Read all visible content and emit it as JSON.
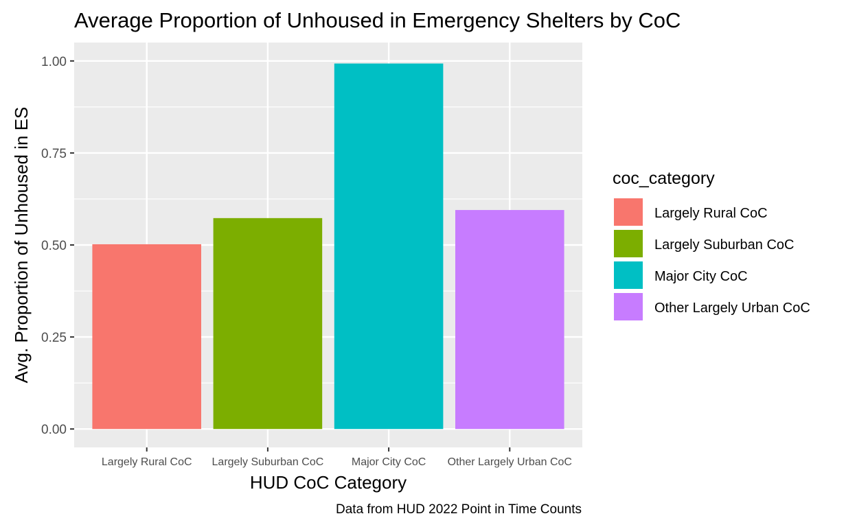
{
  "chart_data": {
    "type": "bar",
    "title": "Average Proportion of Unhoused in Emergency Shelters by CoC",
    "xlabel": "HUD CoC Category",
    "ylabel": "Avg. Proportion of Unhoused in ES",
    "caption": "Data from HUD 2022 Point in Time Counts",
    "categories": [
      "Largely Rural CoC",
      "Largely Suburban CoC",
      "Major City CoC",
      "Other Largely Urban CoC"
    ],
    "values": [
      0.502,
      0.573,
      0.993,
      0.595
    ],
    "colors": [
      "#F8766D",
      "#7CAE00",
      "#00BFC4",
      "#C77CFF"
    ],
    "ylim": [
      -0.05,
      1.05
    ],
    "yticks": [
      0,
      0.25,
      0.5,
      0.75,
      1
    ],
    "ytick_labels": [
      "0.00",
      "0.25",
      "0.50",
      "0.75",
      "1.00"
    ],
    "grid": true,
    "panel_background": "#EBEBEB",
    "legend": {
      "title": "coc_category",
      "position": "right",
      "entries": [
        "Largely Rural CoC",
        "Largely Suburban CoC",
        "Major City CoC",
        "Other Largely Urban CoC"
      ]
    }
  }
}
